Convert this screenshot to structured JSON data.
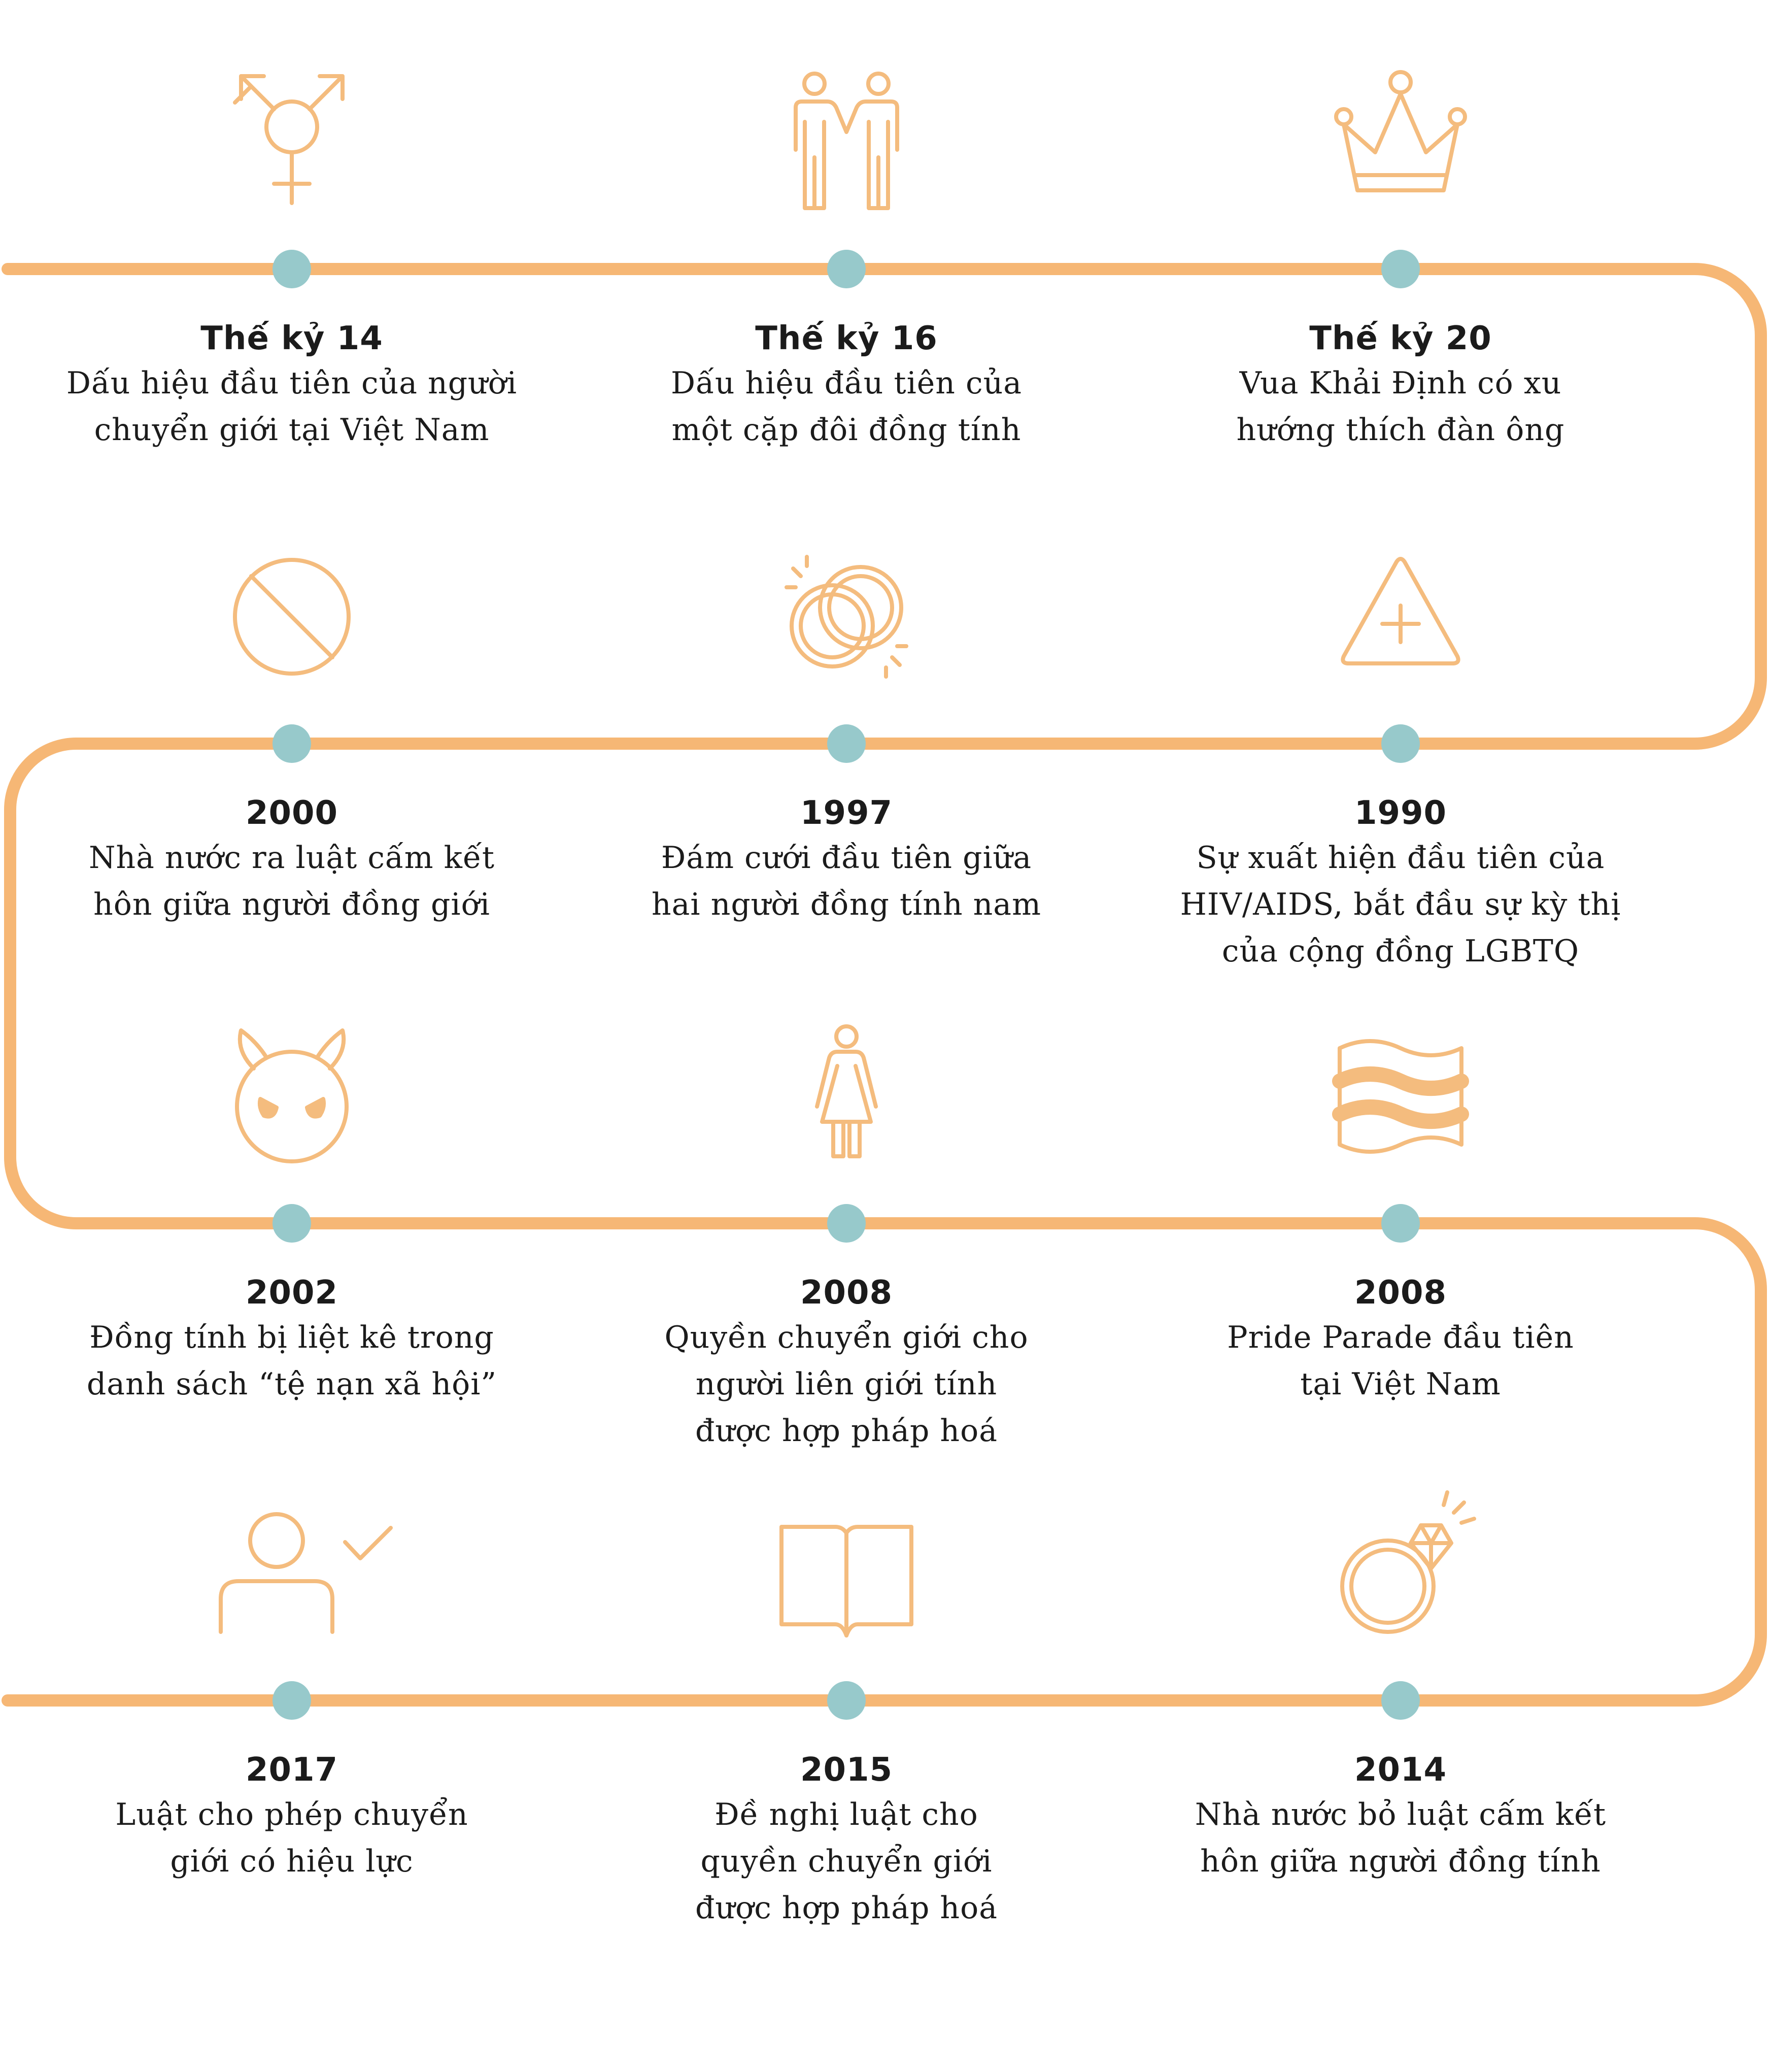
{
  "colors": {
    "line": "#F6B775",
    "icon": "#F4BC7E",
    "node": "#97C9CB",
    "text": "#1b1b1b"
  },
  "events": [
    {
      "date": "Thế kỷ 14",
      "description": "Dấu hiệu đầu tiên của người\nchuyển giới tại Việt Nam",
      "icon": "transgender-symbol-icon"
    },
    {
      "date": "Thế kỷ 16",
      "description": "Dấu hiệu đầu tiên của\nmột cặp đôi đồng tính",
      "icon": "couple-holding-hands-icon"
    },
    {
      "date": "Thế kỷ 20",
      "description": "Vua Khải Định có xu\nhướng thích đàn ông",
      "icon": "crown-icon"
    },
    {
      "date": "1990",
      "description": "Sự xuất hiện đầu tiên của\nHIV/AIDS, bắt đầu sự kỳ thị\ncủa cộng đồng LGBTQ",
      "icon": "warning-triangle-plus-icon"
    },
    {
      "date": "1997",
      "description": "Đám cưới đầu tiên giữa\nhai người đồng tính nam",
      "icon": "interlocked-rings-icon"
    },
    {
      "date": "2000",
      "description": "Nhà nước ra luật cấm kết\nhôn giữa người đồng giới",
      "icon": "prohibited-icon"
    },
    {
      "date": "2002",
      "description": "Đồng tính bị liệt kê trong\ndanh sách “tệ nạn xã hội”",
      "icon": "devil-face-icon"
    },
    {
      "date": "2008",
      "description": "Quyền chuyển giới cho\nngười liên giới tính\nđược hợp pháp hoá",
      "icon": "woman-figure-icon"
    },
    {
      "date": "2008",
      "description": "Pride Parade đầu tiên\ntại Việt Nam",
      "icon": "wavy-flag-icon"
    },
    {
      "date": "2014",
      "description": "Nhà nước bỏ luật cấm kết\nhôn giữa người đồng tính",
      "icon": "diamond-ring-icon"
    },
    {
      "date": "2015",
      "description": "Đề nghị luật cho\nquyền chuyển giới\nđược hợp pháp hoá",
      "icon": "open-book-icon"
    },
    {
      "date": "2017",
      "description": "Luật cho phép chuyển\ngiới có hiệu lực",
      "icon": "user-check-icon"
    }
  ]
}
